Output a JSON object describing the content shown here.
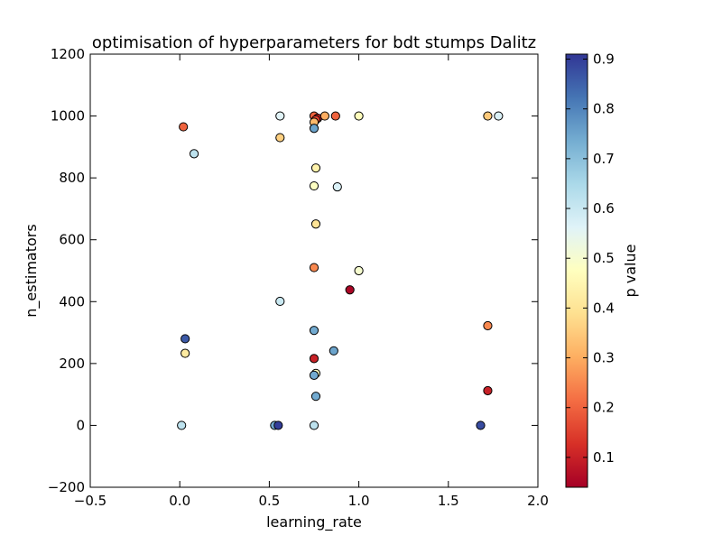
{
  "chart_data": {
    "type": "scatter",
    "title": "optimisation of hyperparameters for bdt stumps Dalitz",
    "xlabel": "learning_rate",
    "ylabel": "n_estimators",
    "xlim": [
      -0.5,
      2.0
    ],
    "ylim": [
      -200,
      1200
    ],
    "xticks": [
      -0.5,
      0.0,
      0.5,
      1.0,
      1.5,
      2.0
    ],
    "xtick_labels": [
      "−0.5",
      "0.0",
      "0.5",
      "1.0",
      "1.5",
      "2.0"
    ],
    "yticks": [
      -200,
      0,
      200,
      400,
      600,
      800,
      1000,
      1200
    ],
    "ytick_labels": [
      "−200",
      "0",
      "200",
      "400",
      "600",
      "800",
      "1000",
      "1200"
    ],
    "grid": false,
    "colorbar": {
      "label": "p value",
      "min": 0.04,
      "max": 0.91,
      "colormap": "RdYlBu",
      "ticks": [
        0.1,
        0.2,
        0.3,
        0.4,
        0.5,
        0.6,
        0.7,
        0.8,
        0.9
      ],
      "tick_labels": [
        "0.1",
        "0.2",
        "0.3",
        "0.4",
        "0.5",
        "0.6",
        "0.7",
        "0.8",
        "0.9"
      ]
    },
    "points": [
      {
        "x": 0.02,
        "y": 965,
        "p": 0.2
      },
      {
        "x": 0.08,
        "y": 878,
        "p": 0.62
      },
      {
        "x": 0.03,
        "y": 280,
        "p": 0.86
      },
      {
        "x": 0.03,
        "y": 233,
        "p": 0.42
      },
      {
        "x": 0.01,
        "y": 0,
        "p": 0.62
      },
      {
        "x": 0.56,
        "y": 1000,
        "p": 0.56
      },
      {
        "x": 0.56,
        "y": 930,
        "p": 0.36
      },
      {
        "x": 0.56,
        "y": 401,
        "p": 0.6
      },
      {
        "x": 0.53,
        "y": 0,
        "p": 0.74
      },
      {
        "x": 0.55,
        "y": 0,
        "p": 0.9
      },
      {
        "x": 0.75,
        "y": 1000,
        "p": 0.2
      },
      {
        "x": 0.77,
        "y": 993,
        "p": 0.1
      },
      {
        "x": 0.76,
        "y": 988,
        "p": 0.15
      },
      {
        "x": 0.75,
        "y": 980,
        "p": 0.32
      },
      {
        "x": 0.75,
        "y": 960,
        "p": 0.75
      },
      {
        "x": 0.76,
        "y": 832,
        "p": 0.44
      },
      {
        "x": 0.75,
        "y": 774,
        "p": 0.48
      },
      {
        "x": 0.76,
        "y": 651,
        "p": 0.4
      },
      {
        "x": 0.75,
        "y": 510,
        "p": 0.25
      },
      {
        "x": 0.75,
        "y": 307,
        "p": 0.74
      },
      {
        "x": 0.75,
        "y": 216,
        "p": 0.1
      },
      {
        "x": 0.76,
        "y": 168,
        "p": 0.48
      },
      {
        "x": 0.75,
        "y": 162,
        "p": 0.74
      },
      {
        "x": 0.76,
        "y": 94,
        "p": 0.74
      },
      {
        "x": 0.75,
        "y": 0,
        "p": 0.62
      },
      {
        "x": 0.81,
        "y": 1000,
        "p": 0.3
      },
      {
        "x": 0.87,
        "y": 1000,
        "p": 0.2
      },
      {
        "x": 0.88,
        "y": 771,
        "p": 0.57
      },
      {
        "x": 0.86,
        "y": 241,
        "p": 0.75
      },
      {
        "x": 0.95,
        "y": 438,
        "p": 0.05
      },
      {
        "x": 1.0,
        "y": 1000,
        "p": 0.47
      },
      {
        "x": 1.0,
        "y": 500,
        "p": 0.5
      },
      {
        "x": 1.72,
        "y": 1000,
        "p": 0.35
      },
      {
        "x": 1.78,
        "y": 1000,
        "p": 0.57
      },
      {
        "x": 1.72,
        "y": 322,
        "p": 0.25
      },
      {
        "x": 1.72,
        "y": 112,
        "p": 0.1
      },
      {
        "x": 1.68,
        "y": 0,
        "p": 0.88
      }
    ]
  }
}
